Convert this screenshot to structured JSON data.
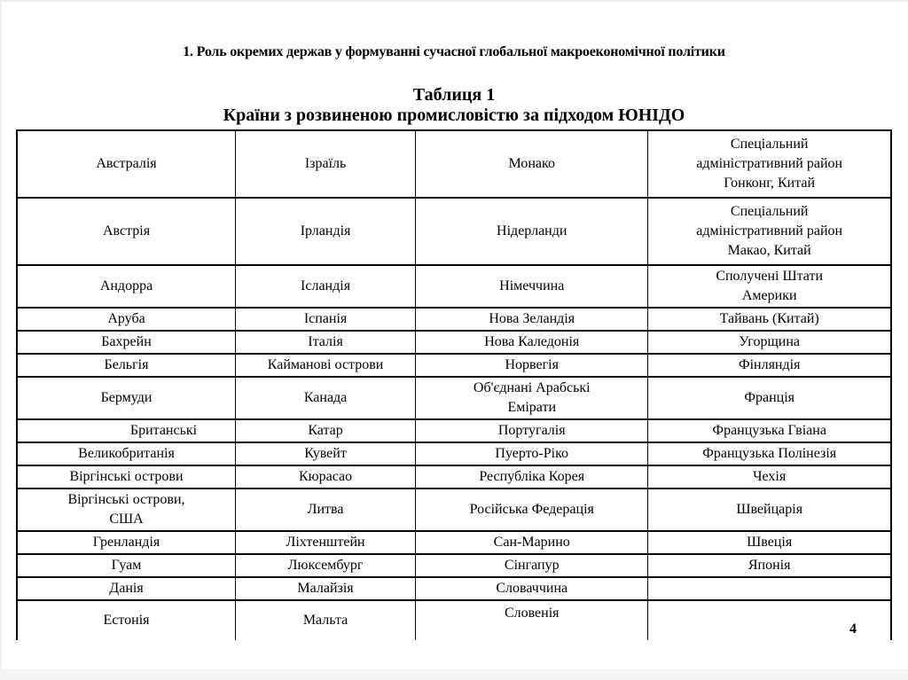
{
  "page": {
    "title": "1. Роль окремих держав у формуванні сучасної глобальної макроекономічної політики",
    "table_caption": "Таблиця 1",
    "table_subtitle": "Країни з розвиненою промисловістю за підходом ЮНІДО",
    "page_number": "4"
  },
  "table": {
    "column_count": 4,
    "rows": [
      [
        "Австралія",
        "Ізраїль",
        "Монако",
        "Спеціальний\nадміністративний район\nГонконг, Китай"
      ],
      [
        "Австрія",
        "Ірландія",
        "Нідерланди",
        "Спеціальний\nадміністративний район\nМакао, Китай"
      ],
      [
        "Андорра",
        "Ісландія",
        "Німеччина",
        "Сполучені Штати\nАмерики"
      ],
      [
        "Аруба",
        "Іспанія",
        "Нова Зеландія",
        "Тайвань (Китай)"
      ],
      [
        "Бахрейн",
        "Італія",
        "Нова Каледонія",
        "Угорщина"
      ],
      [
        "Бельгія",
        "Кайманові острови",
        "Норвегія",
        "Фінляндія"
      ],
      [
        "Бермуди",
        "Канада",
        "Об'єднані Арабські\nЕмірати",
        "Франція"
      ],
      [
        "Британські",
        "Катар",
        "Португалія",
        "Французька Гвіана"
      ],
      [
        "Великобританія",
        "Кувейт",
        "Пуерто-Ріко",
        "Французька Полінезія"
      ],
      [
        "Віргінські острови",
        "Кюрасао",
        "Республіка Корея",
        "Чехія"
      ],
      [
        "Віргінські острови,\nСША",
        "Литва",
        "Російська Федерація",
        "Швейцарія"
      ],
      [
        "Гренландія",
        "Ліхтенштейн",
        "Сан-Марино",
        "Швеція"
      ],
      [
        "Гуам",
        "Люксембург",
        "Сінгапур",
        "Японія"
      ],
      [
        "Данія",
        "Малайзія",
        "Словаччина",
        ""
      ],
      [
        "Естонія",
        "Мальта",
        "Словенія",
        ""
      ]
    ]
  },
  "colors": {
    "text": "#000000",
    "background": "#ffffff",
    "slide_edge": "#f4f4f6"
  }
}
